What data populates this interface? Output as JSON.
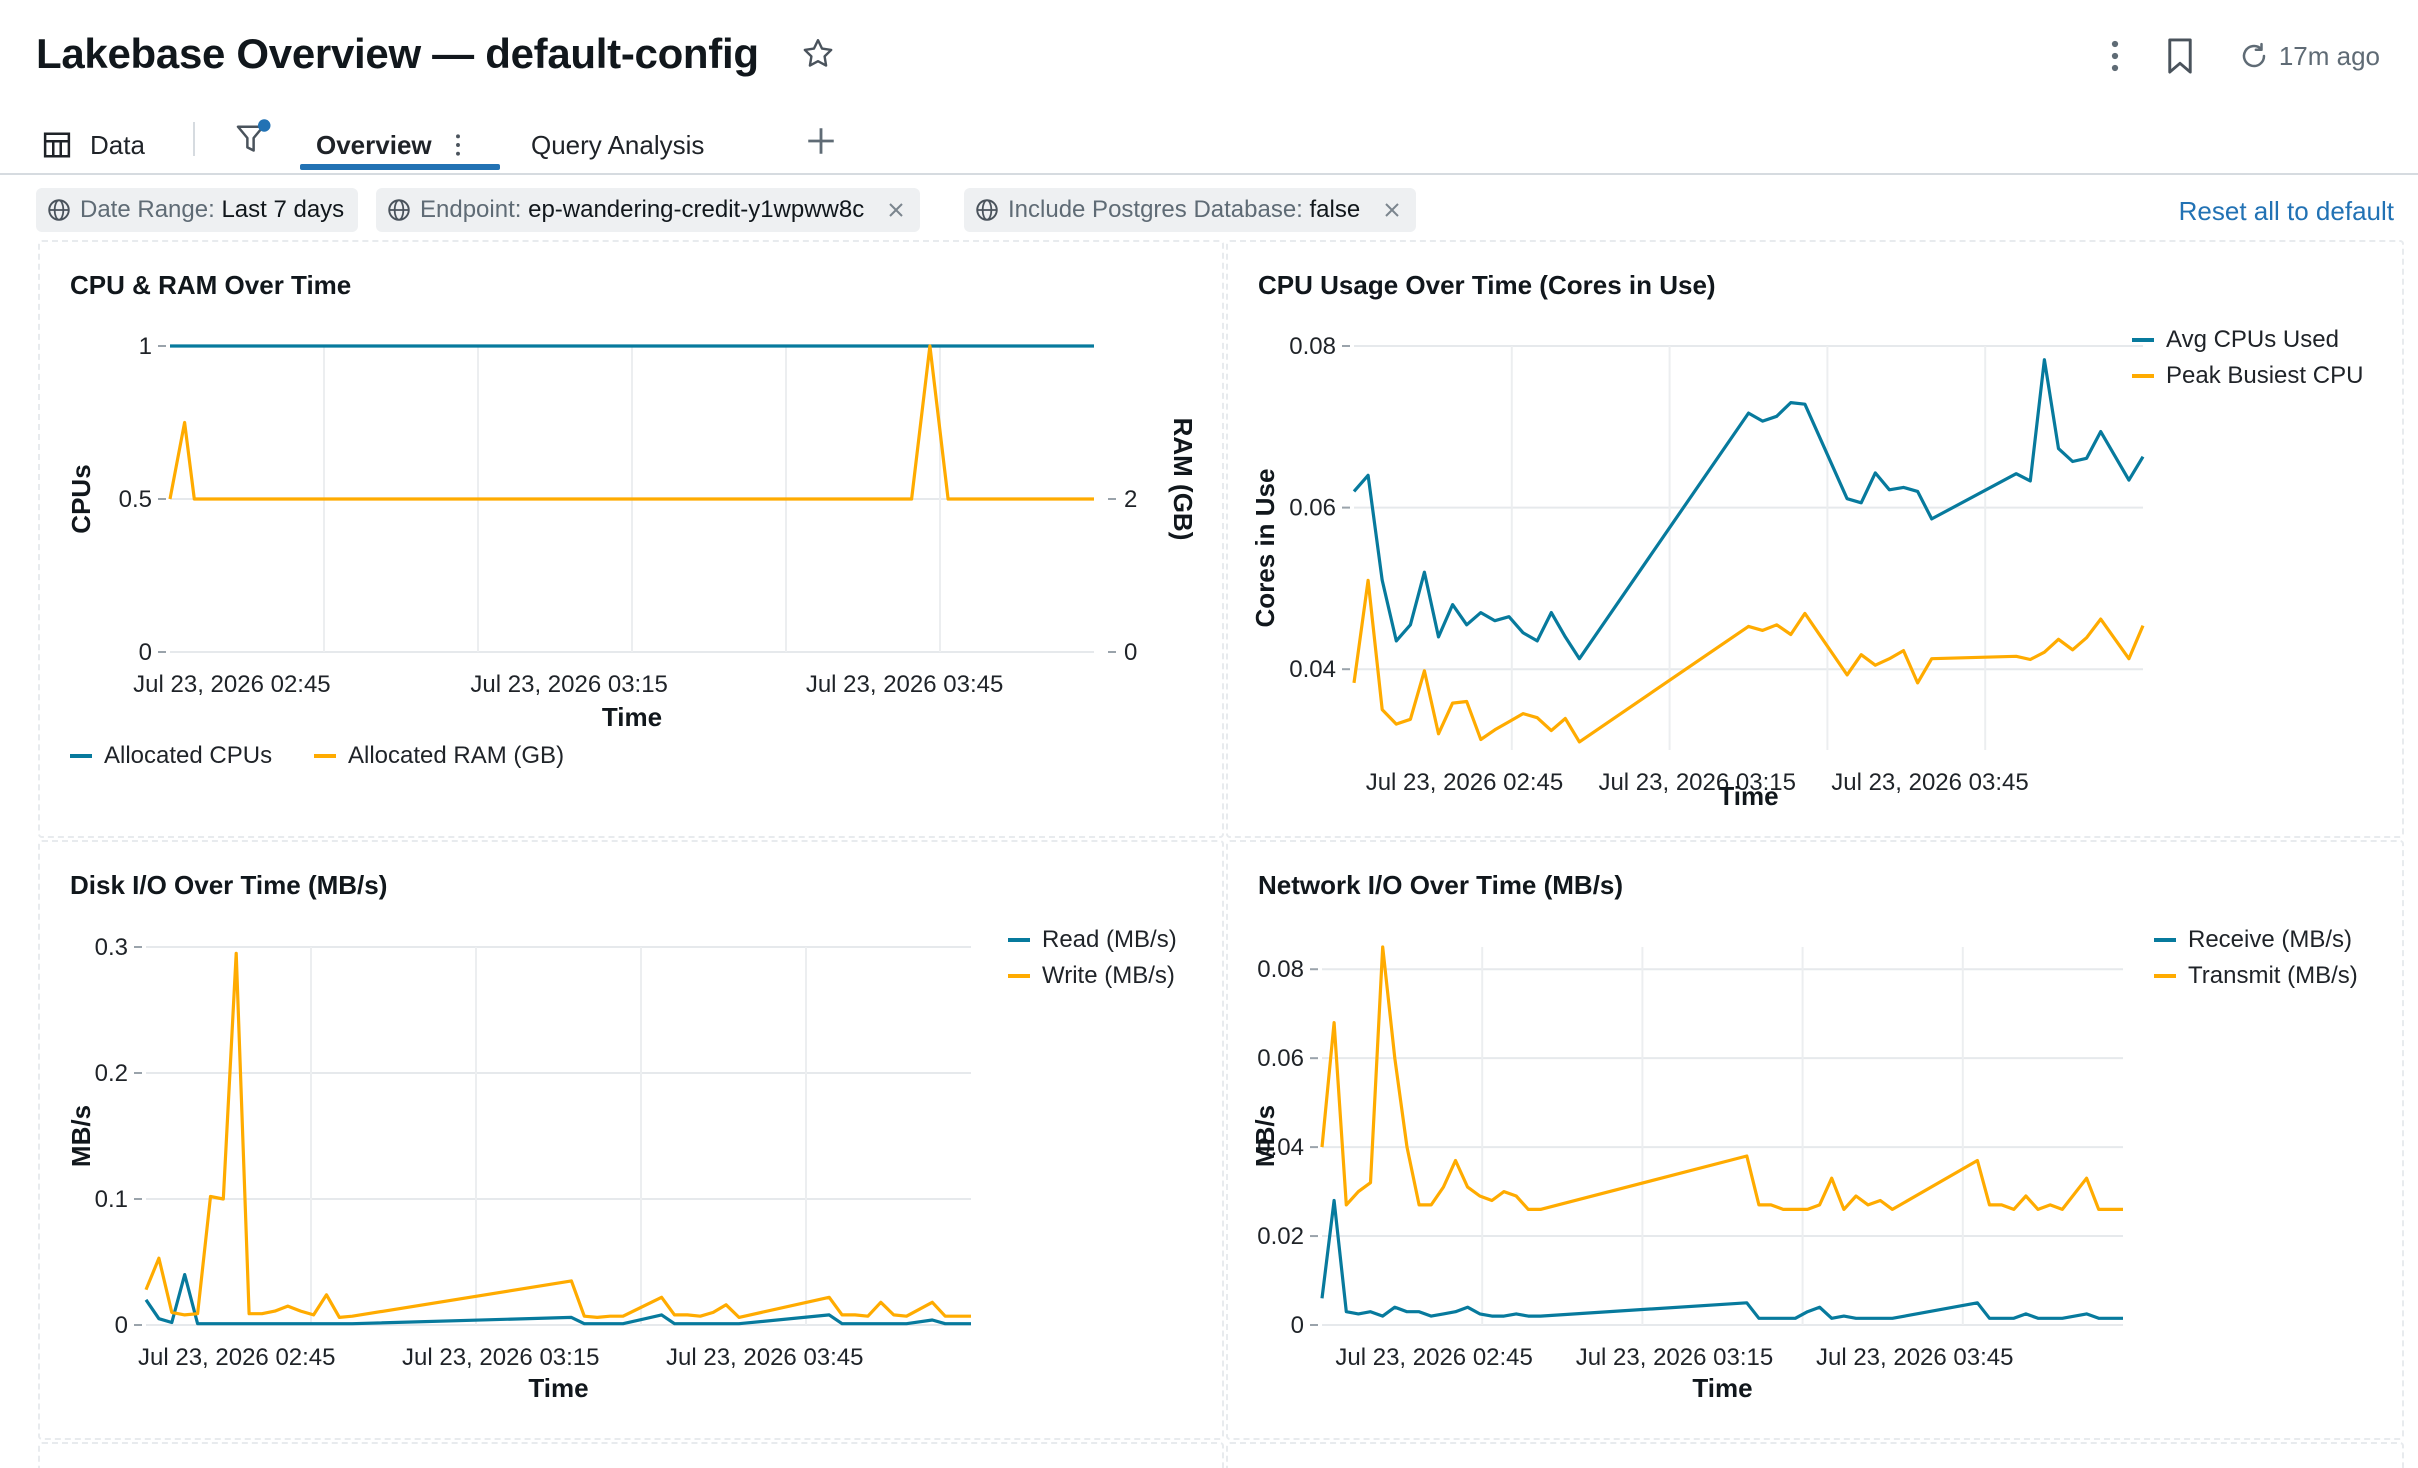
{
  "header": {
    "title": "Lakebase Overview — default-config",
    "refresh_text": "17m ago"
  },
  "tabs": {
    "data_label": "Data",
    "overview_label": "Overview",
    "query_label": "Query Analysis"
  },
  "filters": [
    {
      "key": "Date Range:",
      "value": "Last 7 days",
      "removable": false
    },
    {
      "key": "Endpoint:",
      "value": "ep-wandering-credit-y1wpww8c",
      "removable": true
    },
    {
      "key": "Include Postgres Database:",
      "value": "false",
      "removable": true
    }
  ],
  "reset_label": "Reset all to default",
  "colors": {
    "series_blue": "#077a9d",
    "series_orange": "#ffab00",
    "accent": "#2272b4"
  },
  "chart_data": [
    {
      "type": "line",
      "title": "CPU & RAM Over Time",
      "xlabel": "Time",
      "ylabel": "CPUs",
      "y2label": "RAM (GB)",
      "ylim": [
        0,
        1
      ],
      "y2lim": [
        0,
        4
      ],
      "y_ticks": [
        "0",
        "0.5",
        "1"
      ],
      "y2_ticks": [
        "0",
        "2"
      ],
      "x_ticks": [
        "Jul 23, 2026 02:45",
        "Jul 23, 2026 03:15",
        "Jul 23, 2026 03:45"
      ],
      "x": [
        0,
        1.2,
        2,
        61,
        62.5,
        64,
        76
      ],
      "legend_position": "bottom",
      "series": [
        {
          "name": "Allocated CPUs",
          "axis": "left",
          "values": [
            1,
            1,
            1,
            1,
            1,
            1,
            1
          ]
        },
        {
          "name": "Allocated RAM (GB)",
          "axis": "right",
          "values": [
            2,
            3,
            2,
            2,
            4,
            2,
            2
          ]
        }
      ]
    },
    {
      "type": "line",
      "title": "CPU Usage Over Time (Cores in Use)",
      "xlabel": "Time",
      "ylabel": "Cores in Use",
      "ylim": [
        0.03,
        0.08
      ],
      "y_ticks": [
        "0.04",
        "0.06",
        "0.08"
      ],
      "x_ticks": [
        "Jul 23, 2026 02:45",
        "Jul 23, 2026 03:15",
        "Jul 23, 2026 03:45"
      ],
      "x": [
        0,
        1,
        2,
        3,
        4,
        5,
        6,
        7,
        8,
        9,
        10,
        11,
        12,
        13,
        14,
        15,
        16,
        28,
        29,
        30,
        31,
        32,
        35,
        36,
        37,
        38,
        39,
        40,
        41,
        47,
        48,
        49,
        50,
        51,
        52,
        53,
        55,
        56
      ],
      "legend_position": "top-right",
      "series": [
        {
          "name": "Avg CPUs Used",
          "values": [
            0.062,
            0.064,
            0.051,
            0.0435,
            0.0455,
            0.052,
            0.044,
            0.048,
            0.0455,
            0.047,
            0.046,
            0.0465,
            0.0445,
            0.0435,
            0.047,
            0.044,
            0.0413,
            0.0717,
            0.0707,
            0.0713,
            0.073,
            0.0728,
            0.0611,
            0.0606,
            0.0643,
            0.0622,
            0.0625,
            0.062,
            0.0586,
            0.0642,
            0.0633,
            0.0783,
            0.0673,
            0.0657,
            0.0661,
            0.0694,
            0.0634,
            0.0663
          ]
        },
        {
          "name": "Peak Busiest CPU",
          "values": [
            0.0383,
            0.051,
            0.035,
            0.0332,
            0.0338,
            0.0398,
            0.032,
            0.0358,
            0.036,
            0.0313,
            0.0325,
            0.0335,
            0.0345,
            0.034,
            0.0324,
            0.0339,
            0.031,
            0.0453,
            0.0448,
            0.0455,
            0.0443,
            0.0469,
            0.0393,
            0.0418,
            0.0405,
            0.0413,
            0.0423,
            0.0383,
            0.0413,
            0.0416,
            0.0412,
            0.0421,
            0.0437,
            0.0424,
            0.0439,
            0.0462,
            0.0413,
            0.0454
          ]
        }
      ]
    },
    {
      "type": "line",
      "title": "Disk I/O Over Time (MB/s)",
      "xlabel": "Time",
      "ylabel": "MB/s",
      "ylim": [
        0,
        0.3
      ],
      "y_ticks": [
        "0",
        "0.1",
        "0.2",
        "0.3"
      ],
      "x_ticks": [
        "Jul 23, 2026 02:45",
        "Jul 23, 2026 03:15",
        "Jul 23, 2026 03:45"
      ],
      "x": [
        0,
        1,
        2,
        3,
        4,
        5,
        6,
        7,
        8,
        9,
        10,
        11,
        12,
        13,
        14,
        15,
        16,
        33,
        34,
        35,
        36,
        37,
        40,
        41,
        42,
        43,
        44,
        45,
        46,
        53,
        54,
        55,
        56,
        57,
        58,
        59,
        61,
        62,
        64
      ],
      "legend_position": "top-right",
      "series": [
        {
          "name": "Read (MB/s)",
          "values": [
            0.02,
            0.005,
            0.002,
            0.04,
            0.001,
            0.001,
            0.001,
            0.001,
            0.001,
            0.001,
            0.001,
            0.001,
            0.001,
            0.001,
            0.001,
            0.001,
            0.001,
            0.006,
            0.001,
            0.001,
            0.001,
            0.001,
            0.008,
            0.001,
            0.001,
            0.001,
            0.001,
            0.001,
            0.001,
            0.008,
            0.001,
            0.001,
            0.001,
            0.001,
            0.001,
            0.001,
            0.004,
            0.001,
            0.001
          ]
        },
        {
          "name": "Write (MB/s)",
          "values": [
            0.028,
            0.053,
            0.01,
            0.008,
            0.009,
            0.102,
            0.1,
            0.295,
            0.009,
            0.009,
            0.011,
            0.015,
            0.011,
            0.008,
            0.024,
            0.006,
            0.007,
            0.035,
            0.007,
            0.006,
            0.007,
            0.007,
            0.022,
            0.008,
            0.008,
            0.007,
            0.01,
            0.016,
            0.006,
            0.022,
            0.008,
            0.008,
            0.007,
            0.018,
            0.008,
            0.007,
            0.018,
            0.007,
            0.007
          ]
        }
      ]
    },
    {
      "type": "line",
      "title": "Network I/O Over Time (MB/s)",
      "xlabel": "Time",
      "ylabel": "MB/s",
      "ylim": [
        0,
        0.085
      ],
      "y_ticks": [
        "0",
        "0.02",
        "0.04",
        "0.06",
        "0.08"
      ],
      "x_ticks": [
        "Jul 23, 2026 02:45",
        "Jul 23, 2026 03:15",
        "Jul 23, 2026 03:45"
      ],
      "x": [
        0,
        1,
        2,
        3,
        4,
        5,
        6,
        7,
        8,
        9,
        10,
        11,
        12,
        13,
        14,
        15,
        16,
        17,
        18,
        35,
        36,
        37,
        38,
        39,
        40,
        41,
        42,
        43,
        44,
        45,
        46,
        47,
        54,
        55,
        56,
        57,
        58,
        59,
        60,
        61,
        63,
        64,
        65,
        66
      ],
      "legend_position": "top-right",
      "series": [
        {
          "name": "Receive (MB/s)",
          "values": [
            0.006,
            0.028,
            0.003,
            0.0025,
            0.003,
            0.002,
            0.004,
            0.003,
            0.003,
            0.002,
            0.0025,
            0.003,
            0.004,
            0.0025,
            0.002,
            0.002,
            0.0025,
            0.002,
            0.002,
            0.005,
            0.0015,
            0.0015,
            0.0015,
            0.0015,
            0.003,
            0.004,
            0.0015,
            0.002,
            0.0015,
            0.0015,
            0.0015,
            0.0015,
            0.005,
            0.0015,
            0.0015,
            0.0015,
            0.0025,
            0.0015,
            0.0015,
            0.0015,
            0.0025,
            0.0015,
            0.0015,
            0.0015
          ]
        },
        {
          "name": "Transmit (MB/s)",
          "values": [
            0.04,
            0.068,
            0.027,
            0.03,
            0.032,
            0.085,
            0.06,
            0.04,
            0.027,
            0.027,
            0.031,
            0.037,
            0.031,
            0.029,
            0.028,
            0.03,
            0.029,
            0.026,
            0.026,
            0.038,
            0.027,
            0.027,
            0.026,
            0.026,
            0.026,
            0.027,
            0.033,
            0.026,
            0.029,
            0.027,
            0.028,
            0.026,
            0.037,
            0.027,
            0.027,
            0.026,
            0.029,
            0.026,
            0.027,
            0.026,
            0.033,
            0.026,
            0.026,
            0.026
          ]
        }
      ]
    }
  ]
}
